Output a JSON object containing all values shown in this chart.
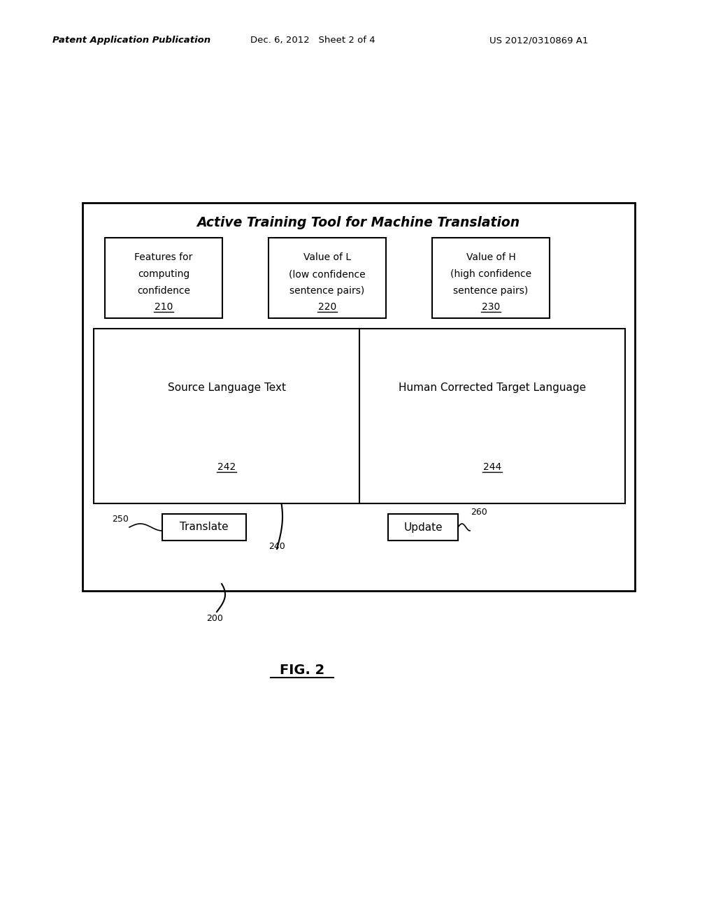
{
  "header_left": "Patent Application Publication",
  "header_mid": "Dec. 6, 2012   Sheet 2 of 4",
  "header_right": "US 2012/0310869 A1",
  "title": "Active Training Tool for Machine Translation",
  "fig_label": "FIG. 2",
  "fig_num": "200",
  "box210_lines": [
    "Features for",
    "computing",
    "confidence"
  ],
  "box210_label": "210",
  "box220_lines": [
    "Value of L",
    "(low confidence",
    "sentence pairs)"
  ],
  "box220_label": "220",
  "box230_lines": [
    "Value of H",
    "(high confidence",
    "sentence pairs)"
  ],
  "box230_label": "230",
  "box242_text": "Source Language Text",
  "box242_label": "242",
  "box244_text": "Human Corrected Target Language",
  "box244_label": "244",
  "box240_label": "240",
  "translate_text": "Translate",
  "translate_label": "250",
  "update_text": "Update",
  "update_label": "260",
  "bg_color": "#ffffff",
  "line_color": "#000000",
  "text_color": "#000000"
}
